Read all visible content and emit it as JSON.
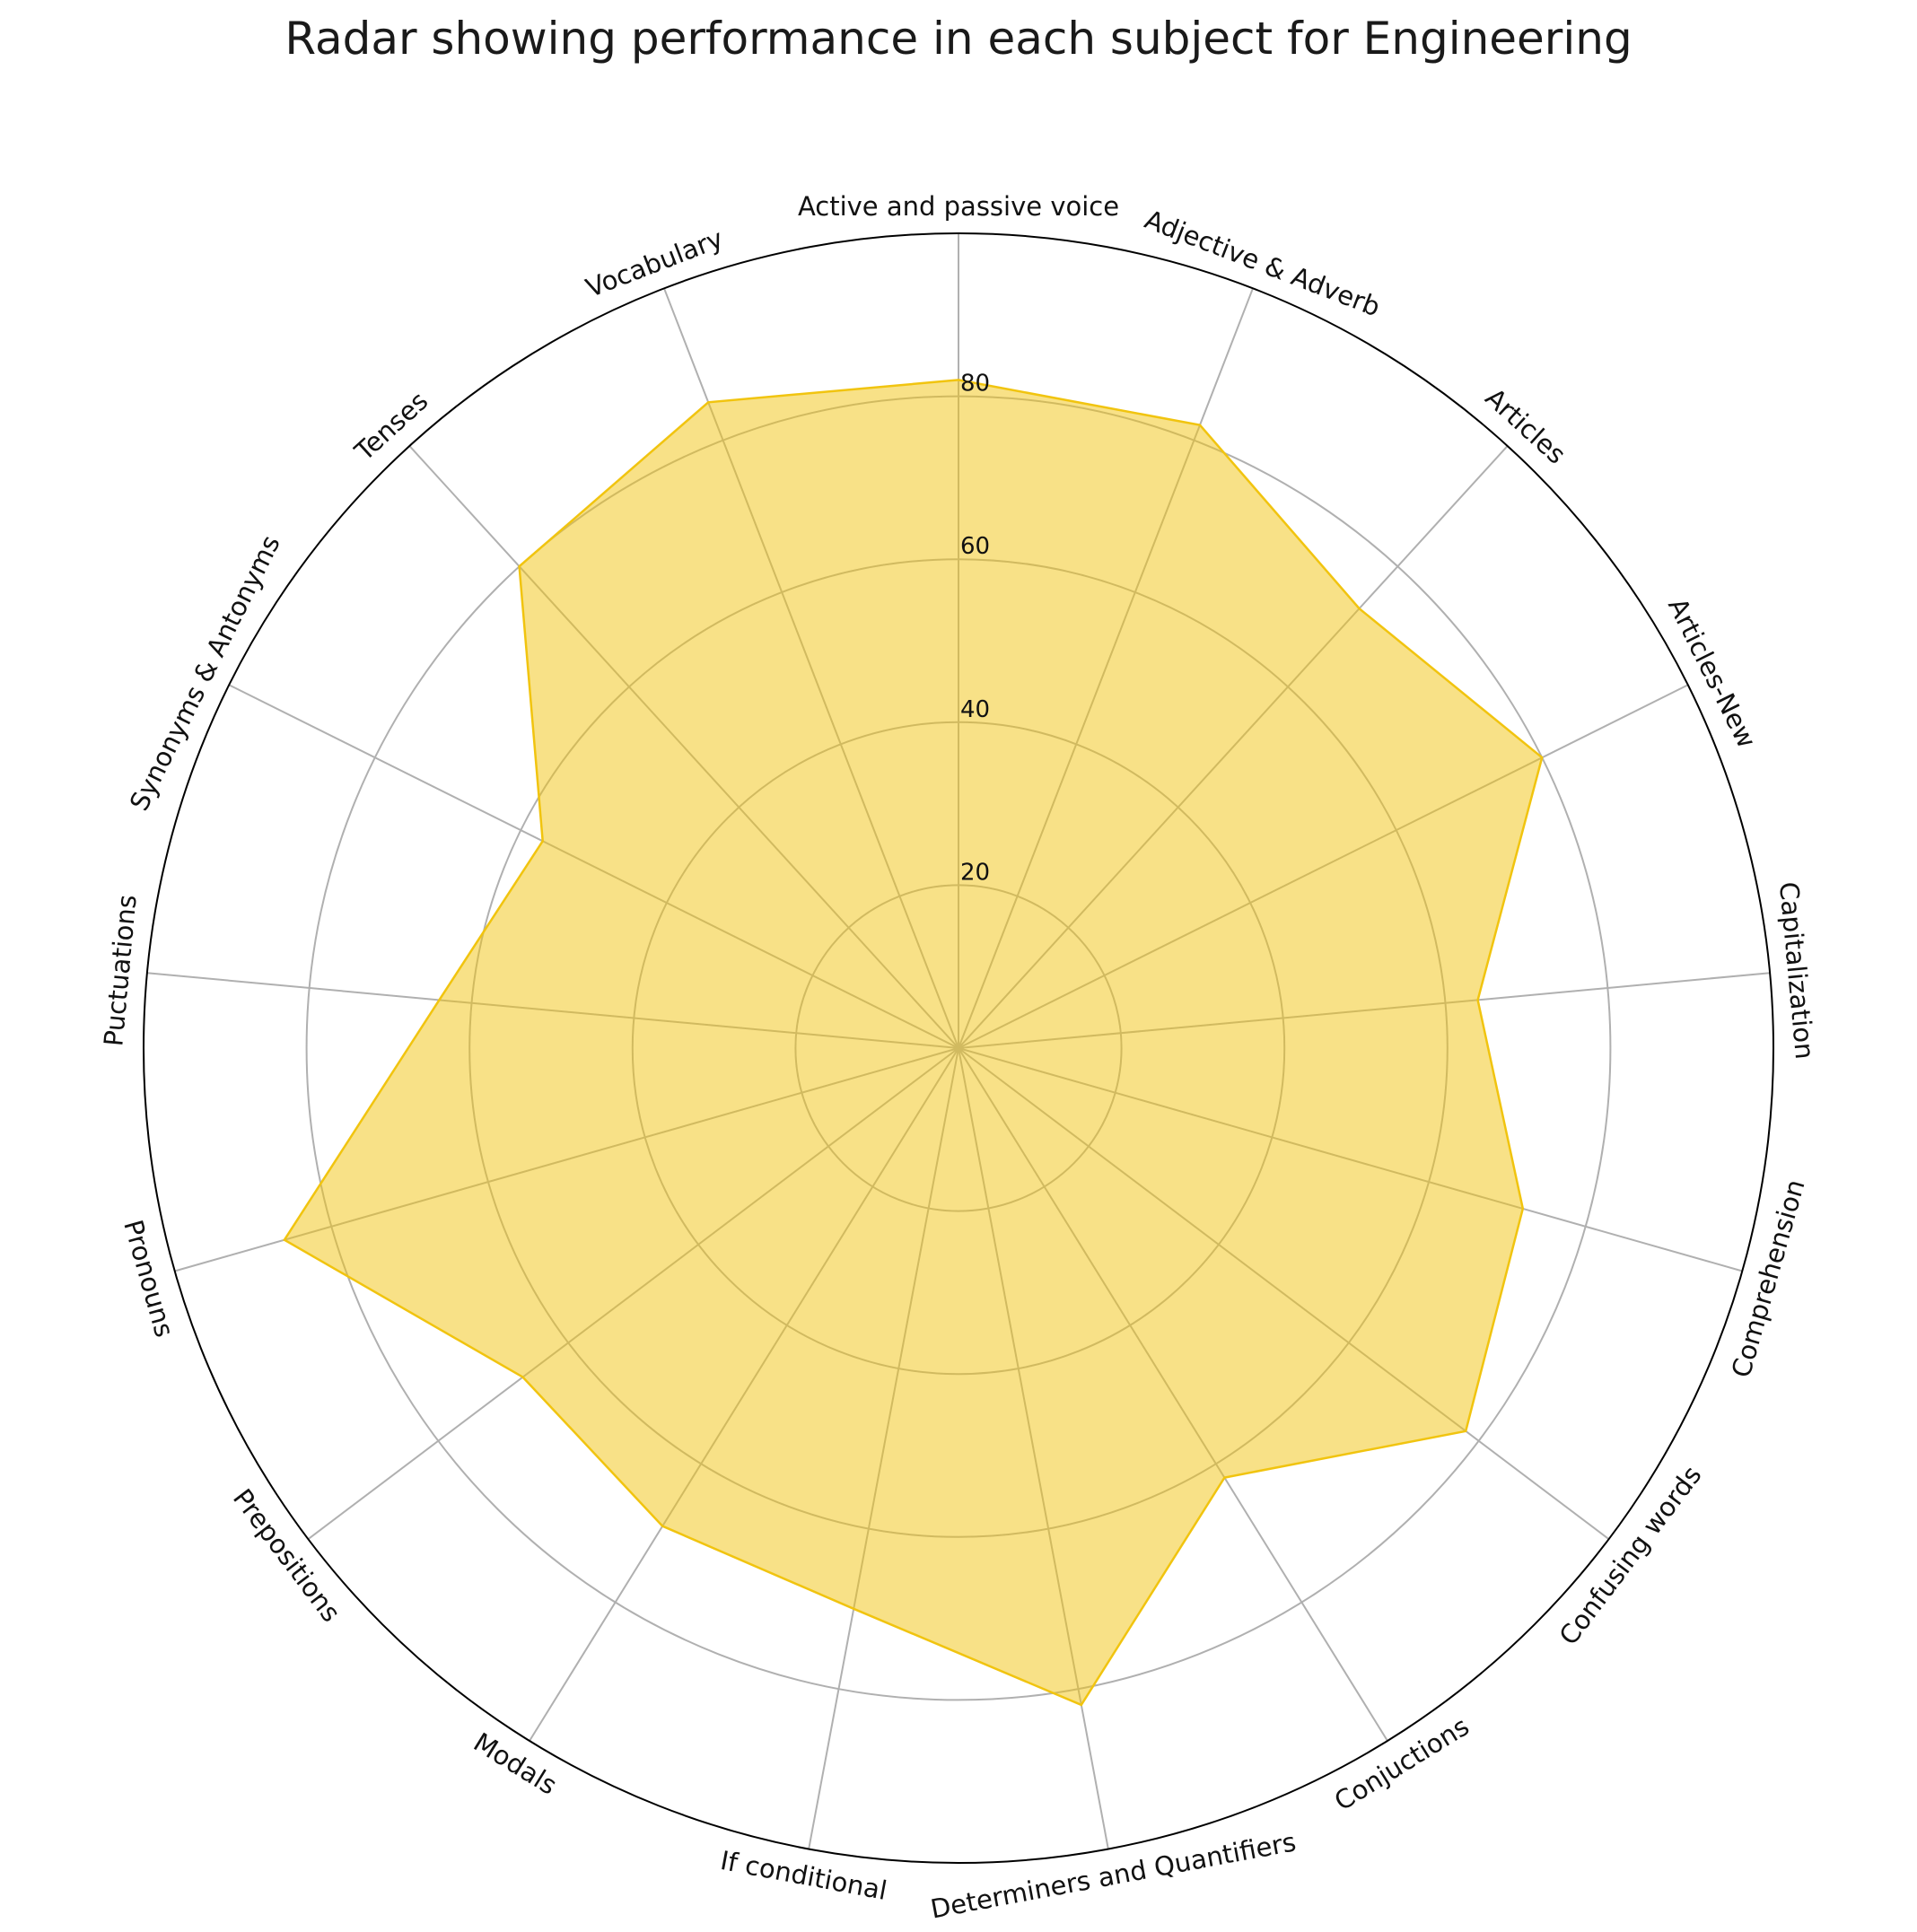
{
  "chart_data": {
    "type": "radar",
    "title": "Radar showing performance in each subject for Engineering",
    "categories": [
      "Active and passive voice",
      "Adjective & Adverb",
      "Articles",
      "Articles-New",
      "Capitalization",
      "Comprehension",
      "Confusing words",
      "Conjuctions",
      "Determiners and Quantifiers",
      "If conditional",
      "Modals",
      "Prepositions",
      "Pronouns",
      "Puctuations",
      "Synonyms & Antonyms",
      "Tenses",
      "Vocabulary"
    ],
    "series": [
      {
        "values": [
          82,
          82,
          73,
          80,
          64,
          72,
          78,
          62,
          82,
          70,
          69,
          67,
          86,
          64,
          57,
          80,
          85
        ],
        "color": "#f1c40f"
      }
    ],
    "rticks": [
      20,
      40,
      60,
      80
    ],
    "rlim": [
      0,
      100
    ],
    "grid": true,
    "legend": "none"
  }
}
